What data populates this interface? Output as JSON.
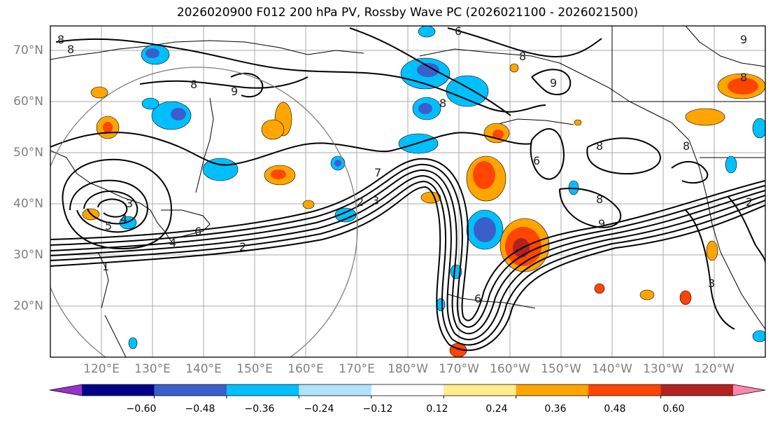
{
  "title": "2026020900 F012 200 hPa PV, Rossby Wave PC (2026021100 - 2026021500)",
  "lat_labels": [
    "70°N",
    "60°N",
    "50°N",
    "40°N",
    "30°N",
    "20°N"
  ],
  "lon_labels": [
    "120°E",
    "130°E",
    "140°E",
    "150°E",
    "160°E",
    "170°E",
    "180°W",
    "170°W",
    "160°W",
    "150°W",
    "140°W",
    "130°W",
    "120°W"
  ],
  "contour_labels": [
    "6",
    "8",
    "8",
    "9",
    "9",
    "8",
    "8",
    "8",
    "9",
    "8",
    "6",
    "8",
    "8",
    "8",
    "9",
    "7",
    "3",
    "2",
    "3",
    "4",
    "5",
    "6",
    "2",
    "1",
    "6",
    "4",
    "3",
    "2"
  ],
  "colorbar": {
    "ticks": [
      "−0.60",
      "−0.48",
      "−0.36",
      "−0.24",
      "−0.12",
      "0.12",
      "0.24",
      "0.36",
      "0.48",
      "0.60"
    ],
    "colors": [
      "#9932cc",
      "#00008b",
      "#3a5fcd",
      "#00bfff",
      "#b0e2ff",
      "#ffffff",
      "#ffec8b",
      "#ffa500",
      "#ff4500",
      "#b22222",
      "#ff86b0"
    ]
  }
}
